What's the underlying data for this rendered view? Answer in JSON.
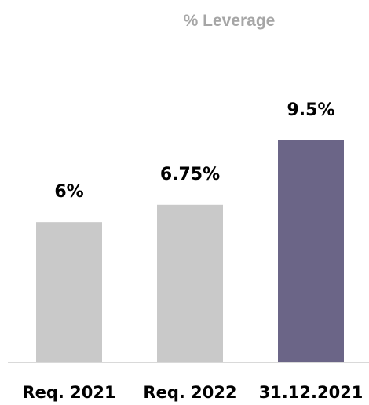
{
  "chart_data": {
    "type": "bar",
    "title": "% Leverage",
    "categories": [
      "Req. 2021",
      "Req. 2022",
      "31.12.2021"
    ],
    "values": [
      6,
      6.75,
      9.5
    ],
    "data_labels": [
      "6%",
      "6.75%",
      "9.5%"
    ],
    "colors": [
      "#c9c9c9",
      "#c9c9c9",
      "#6b6587"
    ],
    "axis_color": "#d9d9d9",
    "ylim": [
      0,
      15.5
    ],
    "grid": false,
    "legend": "none"
  }
}
